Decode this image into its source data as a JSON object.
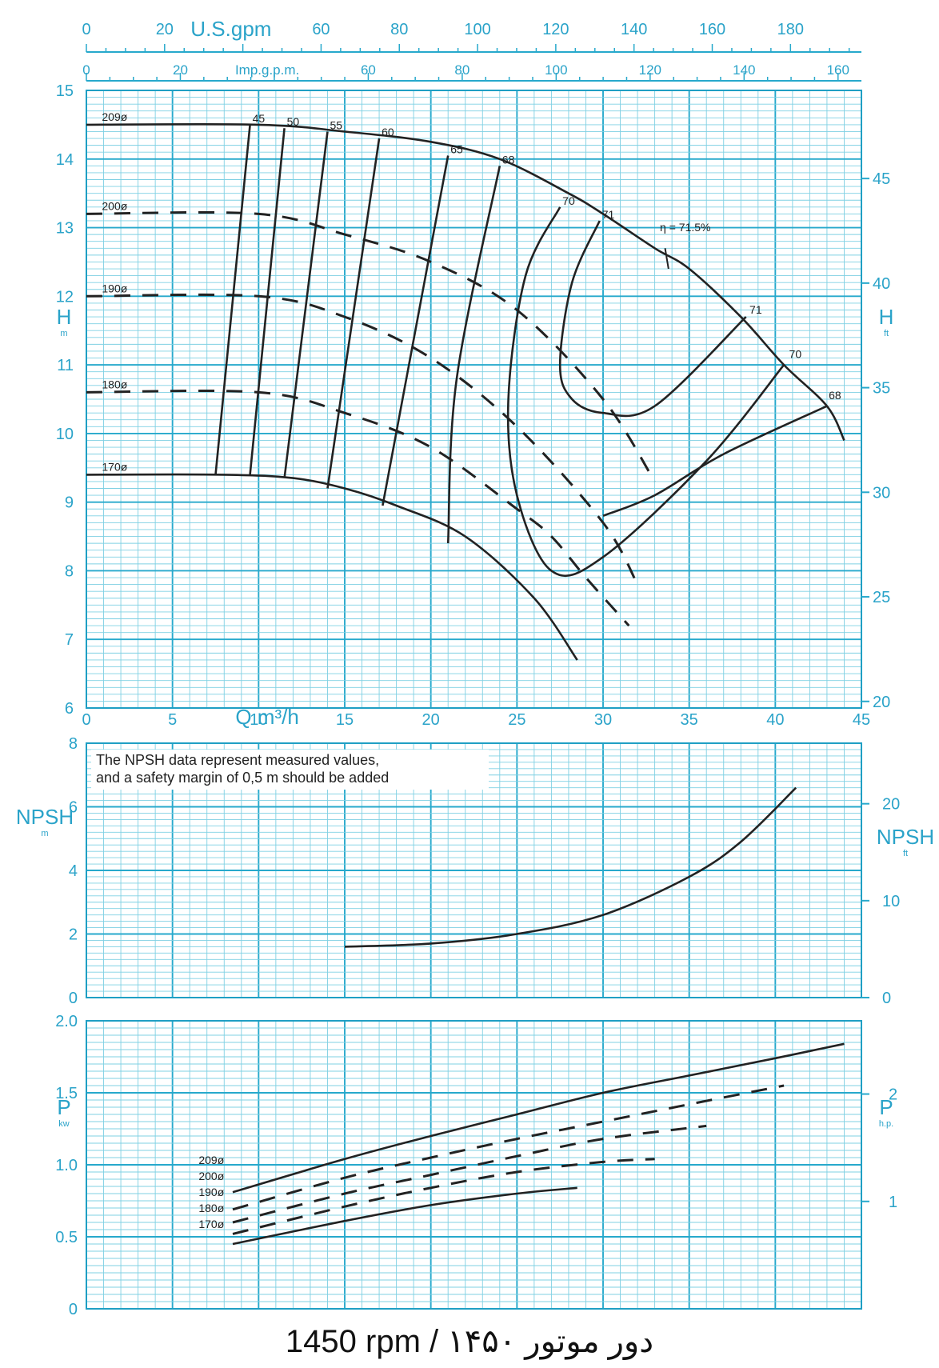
{
  "chart_data": [
    {
      "type": "line",
      "panel": "head",
      "xlabel": "Q m³/h",
      "xlim": [
        0,
        45
      ],
      "x_ticks": [
        "0",
        "5",
        "10",
        "15",
        "20",
        "25",
        "30",
        "35",
        "40",
        "45"
      ],
      "top_axis_gpm_us": {
        "label": "U.S.gpm",
        "ticks": [
          "0",
          "20",
          "40",
          "60",
          "80",
          "100",
          "120",
          "140",
          "160",
          "180"
        ]
      },
      "top_axis_gpm_imp": {
        "label": "Imp.g.p.m.",
        "ticks": [
          "0",
          "20",
          "40",
          "60",
          "80",
          "100",
          "120",
          "140",
          "160"
        ]
      },
      "ylabel_left": "H",
      "ylabel_left_unit": "m",
      "ylim": [
        6,
        15
      ],
      "y_ticks_left": [
        "6",
        "7",
        "8",
        "9",
        "10",
        "11",
        "12",
        "13",
        "14",
        "15"
      ],
      "ylabel_right": "H",
      "ylabel_right_unit": "ft",
      "y_ticks_right": [
        "20",
        "25",
        "30",
        "35",
        "40",
        "45"
      ],
      "impeller_curves": [
        {
          "name": "209ø",
          "x": [
            0,
            10,
            15,
            20,
            24,
            28,
            30,
            33,
            35,
            38,
            40.5,
            43,
            44
          ],
          "y": [
            14.5,
            14.5,
            14.4,
            14.25,
            14.0,
            13.5,
            13.2,
            12.7,
            12.4,
            11.7,
            11.0,
            10.4,
            9.9
          ]
        },
        {
          "name": "200ø",
          "x": [
            0,
            10,
            15,
            20,
            25,
            30,
            33
          ],
          "y": [
            13.2,
            13.2,
            12.9,
            12.5,
            11.8,
            10.5,
            9.3
          ]
        },
        {
          "name": "190ø",
          "x": [
            0,
            10,
            15,
            20,
            25,
            30,
            32
          ],
          "y": [
            12.0,
            12.0,
            11.7,
            11.1,
            10.1,
            8.7,
            7.8
          ]
        },
        {
          "name": "180ø",
          "x": [
            0,
            10,
            15,
            20,
            25,
            27,
            29,
            31.5
          ],
          "y": [
            10.6,
            10.6,
            10.3,
            9.8,
            8.9,
            8.5,
            7.9,
            7.2
          ]
        },
        {
          "name": "170ø",
          "x": [
            0,
            8,
            12,
            15,
            18,
            22,
            26,
            28.5
          ],
          "y": [
            9.4,
            9.4,
            9.35,
            9.2,
            8.95,
            8.5,
            7.6,
            6.7
          ]
        }
      ],
      "efficiency_curves": [
        {
          "name": "45",
          "x": [
            9.5,
            7.5
          ],
          "y": [
            14.5,
            9.4
          ]
        },
        {
          "name": "50",
          "x": [
            11.5,
            9.5
          ],
          "y": [
            14.45,
            9.4
          ]
        },
        {
          "name": "55",
          "x": [
            14,
            11.5
          ],
          "y": [
            14.4,
            9.35
          ]
        },
        {
          "name": "60",
          "x": [
            17,
            14
          ],
          "y": [
            14.3,
            9.2
          ]
        },
        {
          "name": "65",
          "x": [
            21,
            17.2
          ],
          "y": [
            14.05,
            8.95
          ]
        },
        {
          "name": "68",
          "x": [
            24,
            21.5,
            21
          ],
          "y": [
            13.9,
            10.8,
            8.4
          ]
        },
        {
          "name": "70",
          "x": [
            27.5,
            25.5,
            24.5,
            25,
            27,
            30,
            36,
            40.5
          ],
          "y": [
            13.3,
            12.3,
            10.5,
            9.1,
            8.0,
            8.2,
            9.6,
            11.0
          ]
        },
        {
          "name": "71",
          "x": [
            29.8,
            28.2,
            27.5,
            28.2,
            30,
            33,
            38.3
          ],
          "y": [
            13.1,
            12.2,
            11.0,
            10.5,
            10.3,
            10.4,
            11.7
          ]
        },
        {
          "name": "68",
          "x": [
            30,
            33,
            37,
            43
          ],
          "y": [
            8.8,
            9.1,
            9.7,
            10.4
          ]
        }
      ],
      "annotations": [
        "η = 71.5%",
        "71",
        "70",
        "68"
      ]
    },
    {
      "type": "line",
      "panel": "npsh",
      "note_line1": "The NPSH data represent measured values,",
      "note_line2": "and a safety margin of 0,5 m should be added",
      "xlim": [
        0,
        45
      ],
      "ylabel_left": "NPSH",
      "ylabel_left_unit": "m",
      "ylim": [
        0,
        8
      ],
      "y_ticks_left": [
        "0",
        "2",
        "4",
        "6",
        "8"
      ],
      "ylabel_right": "NPSH",
      "ylabel_right_unit": "ft",
      "y_ticks_right": [
        "0",
        "10",
        "20"
      ],
      "series": [
        {
          "x": [
            15,
            20,
            25,
            30,
            35,
            38,
            41.2
          ],
          "y": [
            1.6,
            1.7,
            2.0,
            2.6,
            3.8,
            4.9,
            6.6
          ]
        }
      ]
    },
    {
      "type": "line",
      "panel": "power",
      "xlim": [
        0,
        45
      ],
      "ylabel_left": "P",
      "ylabel_left_unit": "kw",
      "ylim": [
        0,
        2.0
      ],
      "y_ticks_left": [
        "0",
        "0.5",
        "1.0",
        "1.5",
        "2.0"
      ],
      "ylabel_right": "P",
      "ylabel_right_unit": "h.p.",
      "y_ticks_right": [
        "1",
        "2"
      ],
      "series": [
        {
          "name": "209ø",
          "x": [
            8.5,
            15,
            20,
            25,
            30,
            35,
            40,
            44
          ],
          "y": [
            0.81,
            1.04,
            1.2,
            1.35,
            1.5,
            1.62,
            1.74,
            1.84
          ]
        },
        {
          "name": "200ø",
          "x": [
            8.5,
            15,
            20,
            25,
            30,
            35,
            40.5
          ],
          "y": [
            0.69,
            0.91,
            1.05,
            1.18,
            1.3,
            1.42,
            1.55
          ]
        },
        {
          "name": "190ø",
          "x": [
            8.5,
            15,
            20,
            25,
            30,
            36
          ],
          "y": [
            0.6,
            0.8,
            0.93,
            1.06,
            1.18,
            1.27
          ]
        },
        {
          "name": "180ø",
          "x": [
            8.5,
            15,
            20,
            25,
            30,
            33
          ],
          "y": [
            0.52,
            0.71,
            0.84,
            0.95,
            1.02,
            1.04
          ]
        },
        {
          "name": "170ø",
          "x": [
            8.5,
            15,
            20,
            25,
            28.5
          ],
          "y": [
            0.45,
            0.61,
            0.72,
            0.8,
            0.84
          ]
        }
      ]
    }
  ],
  "footer": "1450 rpm / ۱۴۵۰ دور موتور"
}
